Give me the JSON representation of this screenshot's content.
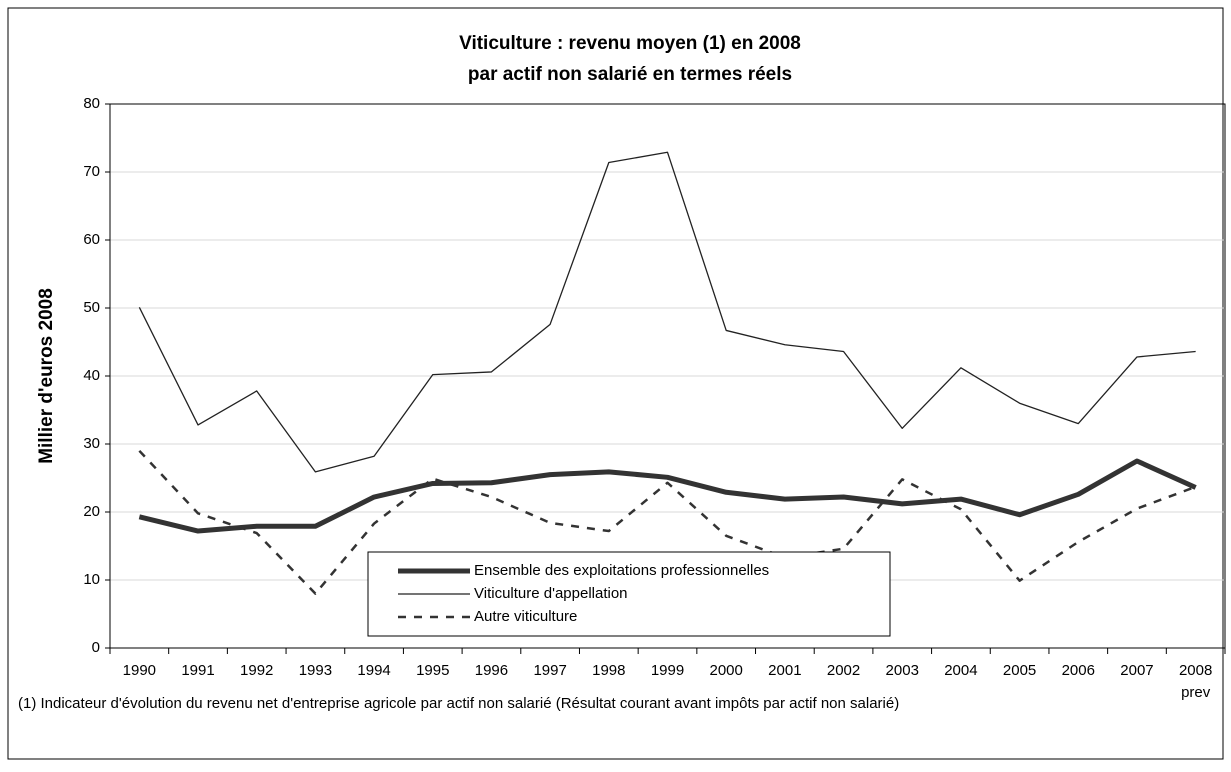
{
  "chart_data": {
    "type": "line",
    "title": "Viticulture : revenu moyen (1) en 2008",
    "subtitle": "par actif non salarié en termes réels",
    "y_label": "Millier d'euros 2008",
    "footnote": "(1) Indicateur d'évolution du revenu net d'entreprise agricole par actif non salarié (Résultat courant avant impôts par actif non salarié)",
    "categories": [
      "1990",
      "1991",
      "1992",
      "1993",
      "1994",
      "1995",
      "1996",
      "1997",
      "1998",
      "1999",
      "2000",
      "2001",
      "2002",
      "2003",
      "2004",
      "2005",
      "2006",
      "2007",
      "2008 prev"
    ],
    "series": [
      {
        "name": "Ensemble des exploitations professionnelles",
        "color": "#333333",
        "style": "thick",
        "values": [
          19.3,
          17.2,
          17.9,
          17.9,
          22.2,
          24.2,
          24.3,
          25.5,
          25.9,
          25.1,
          22.9,
          21.9,
          22.2,
          21.2,
          21.9,
          19.6,
          22.6,
          27.5,
          23.6
        ]
      },
      {
        "name": "Viticulture d'appellation",
        "color": "#222222",
        "style": "thin",
        "values": [
          50.1,
          32.8,
          37.8,
          25.9,
          28.2,
          40.2,
          40.6,
          47.6,
          71.4,
          72.9,
          46.7,
          44.6,
          43.6,
          32.3,
          41.2,
          36.0,
          33.0,
          42.8,
          43.6
        ]
      },
      {
        "name": "Autre viticulture",
        "color": "#333333",
        "style": "dashed",
        "values": [
          29.0,
          19.8,
          16.9,
          8.0,
          18.3,
          24.9,
          22.2,
          18.4,
          17.2,
          24.3,
          16.5,
          13.3,
          14.6,
          24.8,
          20.4,
          9.9,
          15.6,
          20.5,
          23.7
        ]
      }
    ],
    "ylim": [
      0,
      80
    ],
    "yticks": [
      0,
      10,
      20,
      30,
      40,
      50,
      60,
      70,
      80
    ],
    "grid": true
  }
}
